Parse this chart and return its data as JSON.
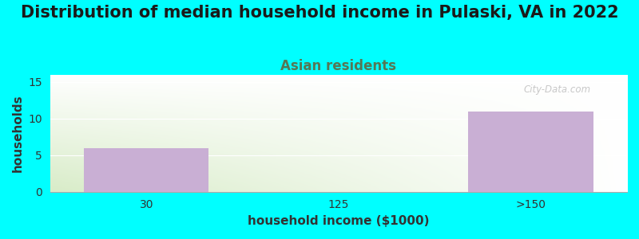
{
  "title": "Distribution of median household income in Pulaski, VA in 2022",
  "subtitle": "Asian residents",
  "xlabel": "household income ($1000)",
  "ylabel": "households",
  "categories": [
    "30",
    "125",
    ">150"
  ],
  "values": [
    6,
    0,
    11
  ],
  "bar_color": "#c9afd4",
  "background_color": "#00FFFF",
  "ylim": [
    0,
    16
  ],
  "yticks": [
    0,
    5,
    10,
    15
  ],
  "xlim": [
    -0.5,
    2.5
  ],
  "title_fontsize": 15,
  "subtitle_fontsize": 12,
  "axis_label_fontsize": 11,
  "tick_fontsize": 10,
  "title_color": "#1a1a1a",
  "subtitle_color": "#557755",
  "watermark": "City-Data.com",
  "bar_width": 0.65
}
